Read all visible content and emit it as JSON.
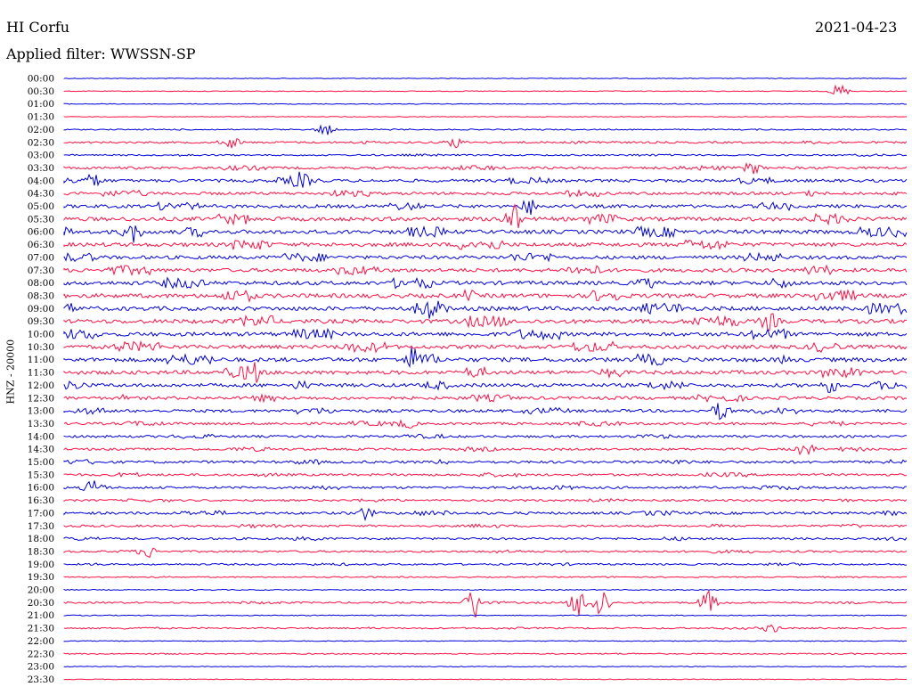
{
  "header": {
    "station": "HI Corfu",
    "date": "2021-04-23",
    "filter_label": "Applied filter: WWSSN-SP"
  },
  "chart_data": {
    "type": "line",
    "title": "HI Corfu",
    "subtitle": "Applied filter: WWSSN-SP",
    "ylabel": "HNZ - 20000",
    "xlabel": "",
    "row_colors": [
      "#0000dd",
      "#ff1144"
    ],
    "grid": false,
    "rows": [
      {
        "time": "00:00",
        "color": "#0000dd",
        "activity": 0.05
      },
      {
        "time": "00:30",
        "color": "#ff1144",
        "activity": 0.05
      },
      {
        "time": "01:00",
        "color": "#0000dd",
        "activity": 0.05
      },
      {
        "time": "01:30",
        "color": "#ff1144",
        "activity": 0.03
      },
      {
        "time": "02:00",
        "color": "#0000dd",
        "activity": 0.15
      },
      {
        "time": "02:30",
        "color": "#ff1144",
        "activity": 0.35
      },
      {
        "time": "03:00",
        "color": "#0000dd",
        "activity": 0.25
      },
      {
        "time": "03:30",
        "color": "#ff1144",
        "activity": 0.5
      },
      {
        "time": "04:00",
        "color": "#0000dd",
        "activity": 0.6
      },
      {
        "time": "04:30",
        "color": "#ff1144",
        "activity": 0.6
      },
      {
        "time": "05:00",
        "color": "#0000dd",
        "activity": 0.7
      },
      {
        "time": "05:30",
        "color": "#ff1144",
        "activity": 0.85
      },
      {
        "time": "06:00",
        "color": "#0000dd",
        "activity": 0.85
      },
      {
        "time": "06:30",
        "color": "#ff1144",
        "activity": 0.85
      },
      {
        "time": "07:00",
        "color": "#0000dd",
        "activity": 0.75
      },
      {
        "time": "07:30",
        "color": "#ff1144",
        "activity": 0.8
      },
      {
        "time": "08:00",
        "color": "#0000dd",
        "activity": 0.85
      },
      {
        "time": "08:30",
        "color": "#ff1144",
        "activity": 0.9
      },
      {
        "time": "09:00",
        "color": "#0000dd",
        "activity": 0.9
      },
      {
        "time": "09:30",
        "color": "#ff1144",
        "activity": 0.9
      },
      {
        "time": "10:00",
        "color": "#0000dd",
        "activity": 0.85
      },
      {
        "time": "10:30",
        "color": "#ff1144",
        "activity": 0.85
      },
      {
        "time": "11:00",
        "color": "#0000dd",
        "activity": 0.9
      },
      {
        "time": "11:30",
        "color": "#ff1144",
        "activity": 0.85
      },
      {
        "time": "12:00",
        "color": "#0000dd",
        "activity": 0.75
      },
      {
        "time": "12:30",
        "color": "#ff1144",
        "activity": 0.65
      },
      {
        "time": "13:00",
        "color": "#0000dd",
        "activity": 0.6
      },
      {
        "time": "13:30",
        "color": "#ff1144",
        "activity": 0.5
      },
      {
        "time": "14:00",
        "color": "#0000dd",
        "activity": 0.45
      },
      {
        "time": "14:30",
        "color": "#ff1144",
        "activity": 0.45
      },
      {
        "time": "15:00",
        "color": "#0000dd",
        "activity": 0.5
      },
      {
        "time": "15:30",
        "color": "#ff1144",
        "activity": 0.45
      },
      {
        "time": "16:00",
        "color": "#0000dd",
        "activity": 0.45
      },
      {
        "time": "16:30",
        "color": "#ff1144",
        "activity": 0.35
      },
      {
        "time": "17:00",
        "color": "#0000dd",
        "activity": 0.5
      },
      {
        "time": "17:30",
        "color": "#ff1144",
        "activity": 0.4
      },
      {
        "time": "18:00",
        "color": "#0000dd",
        "activity": 0.4
      },
      {
        "time": "18:30",
        "color": "#ff1144",
        "activity": 0.35
      },
      {
        "time": "19:00",
        "color": "#0000dd",
        "activity": 0.3
      },
      {
        "time": "19:30",
        "color": "#ff1144",
        "activity": 0.15
      },
      {
        "time": "20:00",
        "color": "#0000dd",
        "activity": 0.1
      },
      {
        "time": "20:30",
        "color": "#ff1144",
        "activity": 0.3
      },
      {
        "time": "21:00",
        "color": "#0000dd",
        "activity": 0.08
      },
      {
        "time": "21:30",
        "color": "#ff1144",
        "activity": 0.25
      },
      {
        "time": "22:00",
        "color": "#0000dd",
        "activity": 0.05
      },
      {
        "time": "22:30",
        "color": "#ff1144",
        "activity": 0.15
      },
      {
        "time": "23:00",
        "color": "#0000dd",
        "activity": 0.05
      },
      {
        "time": "23:30",
        "color": "#ff1144",
        "activity": 0.05
      }
    ],
    "events": [
      {
        "time": "00:30",
        "x_min": 27.6,
        "amp": 1.0
      },
      {
        "time": "02:00",
        "x_min": 9.3,
        "amp": 0.8
      },
      {
        "time": "02:30",
        "x_min": 6.0,
        "amp": 0.6
      },
      {
        "time": "02:30",
        "x_min": 13.9,
        "amp": 0.7
      },
      {
        "time": "03:30",
        "x_min": 24.5,
        "amp": 0.8
      },
      {
        "time": "04:00",
        "x_min": 1.1,
        "amp": 0.7
      },
      {
        "time": "04:00",
        "x_min": 8.4,
        "amp": 0.8
      },
      {
        "time": "05:00",
        "x_min": 16.6,
        "amp": 1.0
      },
      {
        "time": "05:30",
        "x_min": 15.9,
        "amp": 2.6
      },
      {
        "time": "06:00",
        "x_min": 2.4,
        "amp": 1.5
      },
      {
        "time": "09:00",
        "x_min": 13.0,
        "amp": 0.9
      },
      {
        "time": "09:30",
        "x_min": 25.1,
        "amp": 1.1
      },
      {
        "time": "11:00",
        "x_min": 12.4,
        "amp": 1.0
      },
      {
        "time": "11:30",
        "x_min": 6.7,
        "amp": 1.1
      },
      {
        "time": "12:00",
        "x_min": 27.3,
        "amp": 0.9
      },
      {
        "time": "13:00",
        "x_min": 23.4,
        "amp": 1.2
      },
      {
        "time": "13:30",
        "x_min": 12.2,
        "amp": 0.6
      },
      {
        "time": "14:30",
        "x_min": 26.4,
        "amp": 0.9
      },
      {
        "time": "16:00",
        "x_min": 1.1,
        "amp": 1.0
      },
      {
        "time": "17:00",
        "x_min": 10.7,
        "amp": 0.8
      },
      {
        "time": "18:30",
        "x_min": 3.0,
        "amp": 0.7
      },
      {
        "time": "20:30",
        "x_min": 14.6,
        "amp": 2.3
      },
      {
        "time": "20:30",
        "x_min": 18.3,
        "amp": 2.0
      },
      {
        "time": "20:30",
        "x_min": 19.1,
        "amp": 2.3
      },
      {
        "time": "20:30",
        "x_min": 22.9,
        "amp": 1.5
      },
      {
        "time": "21:30",
        "x_min": 25.2,
        "amp": 0.6
      }
    ]
  }
}
